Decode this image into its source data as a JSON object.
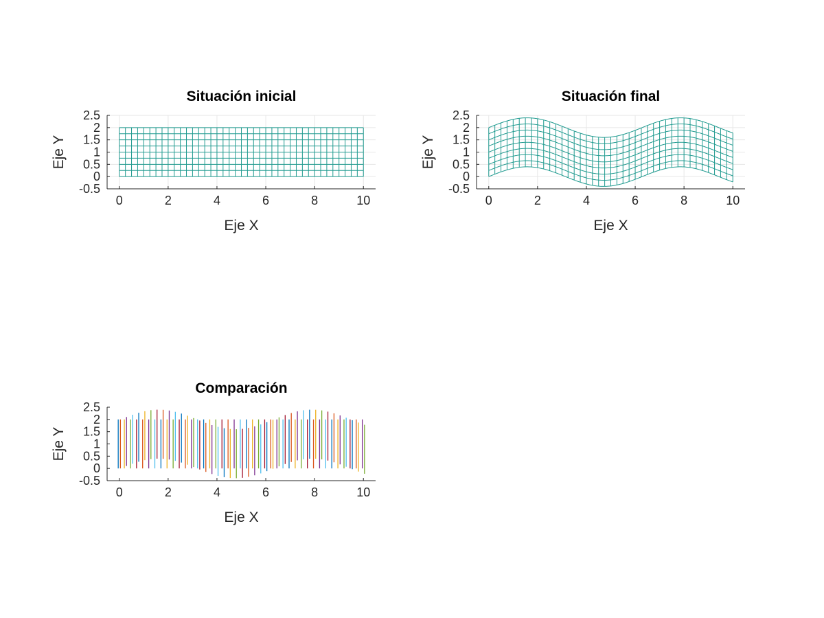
{
  "colors": {
    "mesh": "#1f9a8f",
    "axis": "#262626",
    "grid": "#e6e6e6",
    "series_cycle": [
      "#0072bd",
      "#d95319",
      "#edb120",
      "#7e2f8e",
      "#77ac30",
      "#4dbeee",
      "#a2142f"
    ]
  },
  "chart_data": [
    {
      "type": "line",
      "title": "Situación inicial",
      "xlabel": "Eje X",
      "ylabel": "Eje Y",
      "xlim": [
        -0.5,
        10.5
      ],
      "ylim": [
        -0.5,
        2.5
      ],
      "xticks": [
        "0",
        "2",
        "4",
        "6",
        "8",
        "10"
      ],
      "yticks": [
        "-0.5",
        "0",
        "0.5",
        "1",
        "1.5",
        "2",
        "2.5"
      ],
      "grid": true,
      "mesh": {
        "x_range": [
          0,
          10
        ],
        "y_range": [
          0,
          2
        ],
        "nx": 41,
        "ny": 9,
        "displacement": {
          "function": "sine",
          "amplitude": 0,
          "wavelength": 6.2832
        }
      }
    },
    {
      "type": "line",
      "title": "Situación final",
      "xlabel": "Eje X",
      "ylabel": "Eje Y",
      "xlim": [
        -0.5,
        10.5
      ],
      "ylim": [
        -0.5,
        2.5
      ],
      "xticks": [
        "0",
        "2",
        "4",
        "6",
        "8",
        "10"
      ],
      "yticks": [
        "-0.5",
        "0",
        "0.5",
        "1",
        "1.5",
        "2",
        "2.5"
      ],
      "grid": true,
      "mesh": {
        "x_range": [
          0,
          10
        ],
        "y_range": [
          0,
          2
        ],
        "nx": 41,
        "ny": 9,
        "displacement": {
          "function": "sine",
          "amplitude": 0.4,
          "wavelength": 6.2832
        }
      }
    },
    {
      "type": "line",
      "title": "Comparación",
      "xlabel": "Eje X",
      "ylabel": "Eje Y",
      "xlim": [
        -0.5,
        10.5
      ],
      "ylim": [
        -0.5,
        2.5
      ],
      "xticks": [
        "0",
        "2",
        "4",
        "6",
        "8",
        "10"
      ],
      "yticks": [
        "-0.5",
        "0",
        "0.5",
        "1",
        "1.5",
        "2",
        "2.5"
      ],
      "grid": false,
      "comparison": {
        "x_range": [
          0,
          10
        ],
        "n": 41,
        "initial_y": [
          0,
          2
        ],
        "final_amplitude": 0.4,
        "wavelength": 6.2832
      }
    }
  ]
}
